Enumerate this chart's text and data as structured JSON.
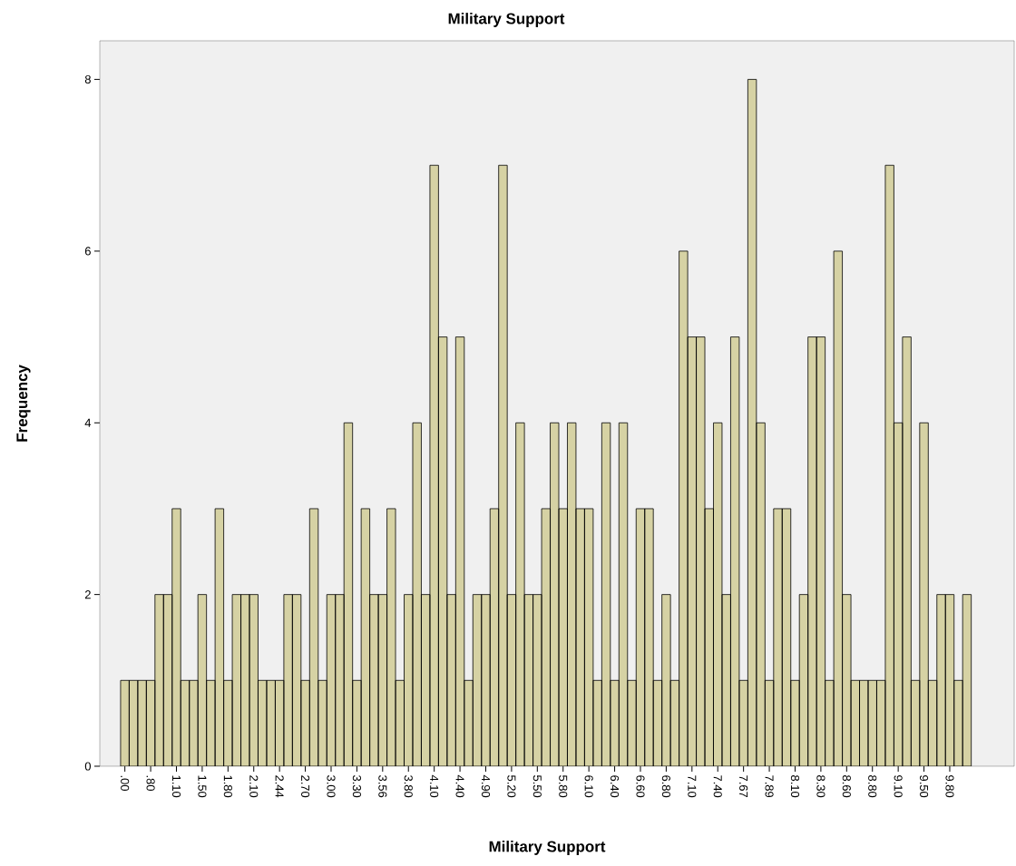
{
  "chart_data": {
    "type": "bar",
    "title": "Military Support",
    "xlabel": "Military Support",
    "ylabel": "Frequency",
    "categories": [
      ".00",
      null,
      null,
      ".80",
      null,
      null,
      "1.10",
      null,
      null,
      "1.50",
      null,
      null,
      "1.80",
      null,
      null,
      "2.10",
      null,
      null,
      "2.44",
      null,
      null,
      "2.70",
      null,
      null,
      "3.00",
      null,
      null,
      "3.30",
      null,
      null,
      "3.56",
      null,
      null,
      "3.80",
      null,
      null,
      "4.10",
      null,
      null,
      "4.40",
      null,
      null,
      "4.90",
      null,
      null,
      "5.20",
      null,
      null,
      "5.50",
      null,
      null,
      "5.80",
      null,
      null,
      "6.10",
      null,
      null,
      "6.40",
      null,
      null,
      "6.60",
      null,
      null,
      "6.80",
      null,
      null,
      "7.10",
      null,
      null,
      "7.40",
      null,
      null,
      "7.67",
      null,
      null,
      "7.89",
      null,
      null,
      "8.10",
      null,
      null,
      "8.30",
      null,
      null,
      "8.60",
      null,
      null,
      "8.80",
      null,
      null,
      "9.10",
      null,
      null,
      "9.50",
      null,
      null,
      "9.80",
      null,
      null
    ],
    "values": [
      1,
      1,
      1,
      1,
      2,
      2,
      3,
      1,
      1,
      2,
      1,
      3,
      1,
      2,
      2,
      2,
      1,
      1,
      1,
      2,
      2,
      1,
      3,
      1,
      2,
      2,
      4,
      1,
      3,
      2,
      2,
      3,
      1,
      2,
      4,
      2,
      7,
      5,
      2,
      5,
      1,
      2,
      2,
      3,
      7,
      2,
      4,
      2,
      2,
      3,
      4,
      3,
      4,
      3,
      3,
      1,
      4,
      1,
      4,
      1,
      3,
      3,
      1,
      2,
      1,
      6,
      5,
      5,
      3,
      4,
      2,
      5,
      1,
      8,
      4,
      1,
      3,
      3,
      1,
      2,
      5,
      5,
      1,
      6,
      2,
      1,
      1,
      1,
      1,
      7,
      4,
      5,
      1,
      4,
      1,
      2,
      2,
      1,
      2
    ],
    "color": "#d6d2a4",
    "ylim": [
      0,
      8.45
    ],
    "yticks": [
      0,
      2,
      4,
      6,
      8
    ]
  }
}
